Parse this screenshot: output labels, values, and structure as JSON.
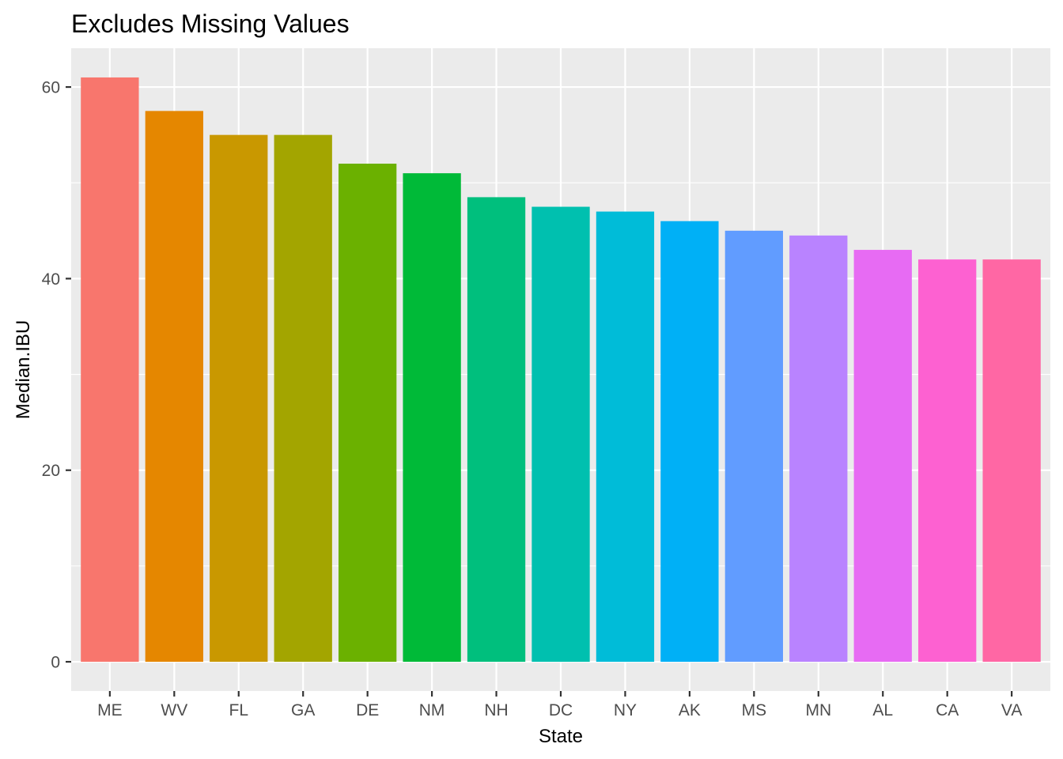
{
  "chart_data": {
    "type": "bar",
    "title": "Excludes Missing Values",
    "xlabel": "State",
    "ylabel": "Median.IBU",
    "categories": [
      "ME",
      "WV",
      "FL",
      "GA",
      "DE",
      "NM",
      "NH",
      "DC",
      "NY",
      "AK",
      "MS",
      "MN",
      "AL",
      "CA",
      "VA"
    ],
    "values": [
      61,
      57.5,
      55,
      55,
      52,
      51,
      48.5,
      47.5,
      47,
      46,
      45,
      44.5,
      43,
      42,
      42
    ],
    "colors": [
      "#F8766D",
      "#E58700",
      "#C99800",
      "#A3A500",
      "#6BB100",
      "#00BA38",
      "#00BF7D",
      "#00C0AF",
      "#00BCD8",
      "#00B0F6",
      "#619CFF",
      "#B983FF",
      "#E76BF3",
      "#FD61D1",
      "#FF67A4"
    ],
    "yticks": [
      0,
      20,
      40,
      60
    ],
    "ylim": [
      -3.05,
      64.05
    ],
    "panel_background": "#EBEBEB",
    "grid_color": "#FFFFFF",
    "grid": true,
    "legend": "none"
  }
}
